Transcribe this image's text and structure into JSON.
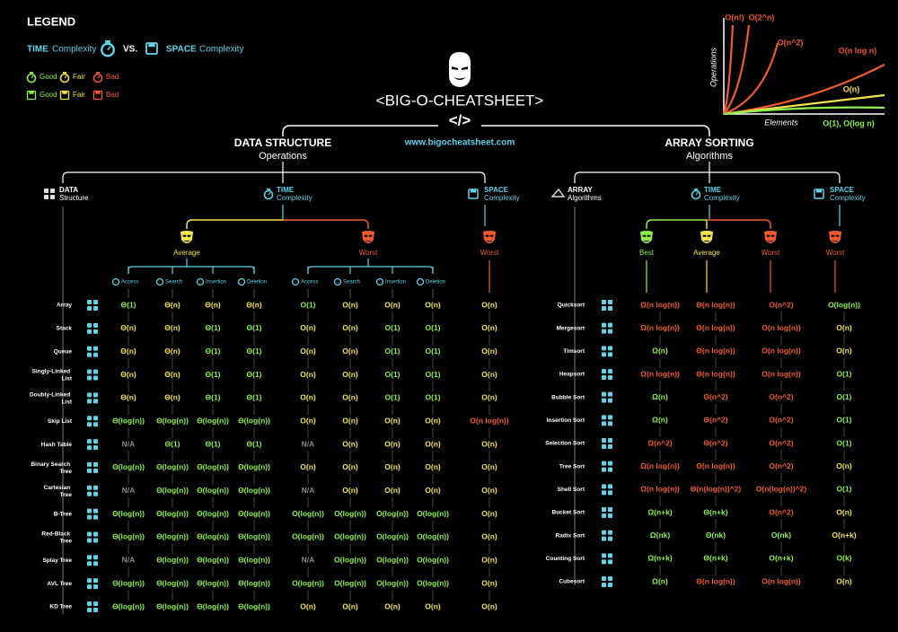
{
  "legend": {
    "title": "LEGEND",
    "time": "TIME",
    "time_sub": "Complexity",
    "vs": "VS.",
    "space": "SPACE",
    "space_sub": "Complexity",
    "time_ratings": [
      "Good",
      "Fair",
      "Bad"
    ],
    "space_ratings": [
      "Good",
      "Fair",
      "Bad"
    ],
    "rating_keys": [
      "good",
      "fair",
      "bad"
    ]
  },
  "colors": {
    "good": "#8ef04a",
    "fair": "#f2e44c",
    "bad": "#ef5a2f",
    "na": "#8a8a8a",
    "accent": "#5fd3e8"
  },
  "header": {
    "title": "<BIG-O-CHEATSHEET>",
    "code": "</>",
    "url": "www.bigocheatsheet.com"
  },
  "growth_chart": {
    "y_label": "Operations",
    "x_label": "Elements",
    "curves": [
      {
        "label": "O(n!)",
        "color": "#ef5a2f"
      },
      {
        "label": "O(2^n)",
        "color": "#ef5a2f"
      },
      {
        "label": "O(n^2)",
        "color": "#ef5a2f"
      },
      {
        "label": "O(n log n)",
        "color": "#ef5a2f"
      },
      {
        "label": "O(n)",
        "color": "#f2e44c"
      },
      {
        "label": "O(1), O(log n)",
        "color": "#8ef04a"
      }
    ]
  },
  "data_structures": {
    "title": "DATA STRUCTURE",
    "subtitle": "Operations",
    "structure_head": {
      "title": "DATA",
      "sub": "Structure"
    },
    "time_head": {
      "title": "TIME",
      "sub": "Complexity"
    },
    "space_head": {
      "title": "SPACE",
      "sub": "Complexity"
    },
    "groups": [
      "Average",
      "Worst"
    ],
    "group_ratings": [
      "fair",
      "bad"
    ],
    "space_group": "Worst",
    "space_group_rating": "bad",
    "operations": [
      "Access",
      "Search",
      "Insertion",
      "Deletion"
    ],
    "rows": [
      {
        "name": "Array",
        "cells": [
          "Θ(1)",
          "Θ(n)",
          "Θ(n)",
          "Θ(n)",
          "O(1)",
          "O(n)",
          "O(n)",
          "O(n)",
          "O(n)"
        ],
        "ratings": [
          "good",
          "fair",
          "fair",
          "fair",
          "good",
          "fair",
          "fair",
          "fair",
          "fair"
        ]
      },
      {
        "name": "Stack",
        "cells": [
          "Θ(n)",
          "Θ(n)",
          "Θ(1)",
          "Θ(1)",
          "O(n)",
          "O(n)",
          "O(1)",
          "O(1)",
          "O(n)"
        ],
        "ratings": [
          "fair",
          "fair",
          "good",
          "good",
          "fair",
          "fair",
          "good",
          "good",
          "fair"
        ]
      },
      {
        "name": "Queue",
        "cells": [
          "Θ(n)",
          "Θ(n)",
          "Θ(1)",
          "Θ(1)",
          "O(n)",
          "O(n)",
          "O(1)",
          "O(1)",
          "O(n)"
        ],
        "ratings": [
          "fair",
          "fair",
          "good",
          "good",
          "fair",
          "fair",
          "good",
          "good",
          "fair"
        ]
      },
      {
        "name": "Singly-Linked List",
        "cells": [
          "Θ(n)",
          "Θ(n)",
          "Θ(1)",
          "Θ(1)",
          "O(n)",
          "O(n)",
          "O(1)",
          "O(1)",
          "O(n)"
        ],
        "ratings": [
          "fair",
          "fair",
          "good",
          "good",
          "fair",
          "fair",
          "good",
          "good",
          "fair"
        ]
      },
      {
        "name": "Doubly-Linked List",
        "cells": [
          "Θ(n)",
          "Θ(n)",
          "Θ(1)",
          "Θ(1)",
          "O(n)",
          "O(n)",
          "O(1)",
          "O(1)",
          "O(n)"
        ],
        "ratings": [
          "fair",
          "fair",
          "good",
          "good",
          "fair",
          "fair",
          "good",
          "good",
          "fair"
        ]
      },
      {
        "name": "Skip List",
        "cells": [
          "Θ(log(n))",
          "Θ(log(n))",
          "Θ(log(n))",
          "Θ(log(n))",
          "O(n)",
          "O(n)",
          "O(n)",
          "O(n)",
          "O(n log(n))"
        ],
        "ratings": [
          "good",
          "good",
          "good",
          "good",
          "fair",
          "fair",
          "fair",
          "fair",
          "bad"
        ]
      },
      {
        "name": "Hash Table",
        "cells": [
          "N/A",
          "Θ(1)",
          "Θ(1)",
          "Θ(1)",
          "N/A",
          "O(n)",
          "O(n)",
          "O(n)",
          "O(n)"
        ],
        "ratings": [
          "na",
          "good",
          "good",
          "good",
          "na",
          "fair",
          "fair",
          "fair",
          "fair"
        ]
      },
      {
        "name": "Binary Search Tree",
        "cells": [
          "Θ(log(n))",
          "Θ(log(n))",
          "Θ(log(n))",
          "Θ(log(n))",
          "O(n)",
          "O(n)",
          "O(n)",
          "O(n)",
          "O(n)"
        ],
        "ratings": [
          "good",
          "good",
          "good",
          "good",
          "fair",
          "fair",
          "fair",
          "fair",
          "fair"
        ]
      },
      {
        "name": "Cartesian Tree",
        "cells": [
          "N/A",
          "Θ(log(n))",
          "Θ(log(n))",
          "Θ(log(n))",
          "N/A",
          "O(n)",
          "O(n)",
          "O(n)",
          "O(n)"
        ],
        "ratings": [
          "na",
          "good",
          "good",
          "good",
          "na",
          "fair",
          "fair",
          "fair",
          "fair"
        ]
      },
      {
        "name": "B-Tree",
        "cells": [
          "Θ(log(n))",
          "Θ(log(n))",
          "Θ(log(n))",
          "Θ(log(n))",
          "O(log(n))",
          "O(log(n))",
          "O(log(n))",
          "O(log(n))",
          "O(n)"
        ],
        "ratings": [
          "good",
          "good",
          "good",
          "good",
          "good",
          "good",
          "good",
          "good",
          "fair"
        ]
      },
      {
        "name": "Red-Black Tree",
        "cells": [
          "Θ(log(n))",
          "Θ(log(n))",
          "Θ(log(n))",
          "Θ(log(n))",
          "O(log(n))",
          "O(log(n))",
          "O(log(n))",
          "O(log(n))",
          "O(n)"
        ],
        "ratings": [
          "good",
          "good",
          "good",
          "good",
          "good",
          "good",
          "good",
          "good",
          "fair"
        ]
      },
      {
        "name": "Splay Tree",
        "cells": [
          "N/A",
          "Θ(log(n))",
          "Θ(log(n))",
          "Θ(log(n))",
          "N/A",
          "O(log(n))",
          "O(log(n))",
          "O(log(n))",
          "O(n)"
        ],
        "ratings": [
          "na",
          "good",
          "good",
          "good",
          "na",
          "good",
          "good",
          "good",
          "fair"
        ]
      },
      {
        "name": "AVL Tree",
        "cells": [
          "Θ(log(n))",
          "Θ(log(n))",
          "Θ(log(n))",
          "Θ(log(n))",
          "O(log(n))",
          "O(log(n))",
          "O(log(n))",
          "O(log(n))",
          "O(n)"
        ],
        "ratings": [
          "good",
          "good",
          "good",
          "good",
          "good",
          "good",
          "good",
          "good",
          "fair"
        ]
      },
      {
        "name": "KD Tree",
        "cells": [
          "Θ(log(n))",
          "Θ(log(n))",
          "Θ(log(n))",
          "Θ(log(n))",
          "O(n)",
          "O(n)",
          "O(n)",
          "O(n)",
          "O(n)"
        ],
        "ratings": [
          "good",
          "good",
          "good",
          "good",
          "fair",
          "fair",
          "fair",
          "fair",
          "fair"
        ]
      }
    ]
  },
  "array_sorting": {
    "title": "ARRAY SORTING",
    "subtitle": "Algorithms",
    "algo_head": {
      "title": "ARRAY",
      "sub": "Algorithms"
    },
    "time_head": {
      "title": "TIME",
      "sub": "Complexity"
    },
    "space_head": {
      "title": "SPACE",
      "sub": "Complexity"
    },
    "time_groups": [
      "Best",
      "Average",
      "Worst"
    ],
    "time_group_ratings": [
      "good",
      "fair",
      "bad"
    ],
    "space_group": "Worst",
    "space_group_rating": "bad",
    "rows": [
      {
        "name": "Quicksort",
        "cells": [
          "Ω(n log(n))",
          "Θ(n log(n))",
          "O(n^2)",
          "O(log(n))"
        ],
        "ratings": [
          "bad",
          "bad",
          "bad",
          "good"
        ]
      },
      {
        "name": "Mergesort",
        "cells": [
          "Ω(n log(n))",
          "Θ(n log(n))",
          "O(n log(n))",
          "O(n)"
        ],
        "ratings": [
          "bad",
          "bad",
          "bad",
          "fair"
        ]
      },
      {
        "name": "Timsort",
        "cells": [
          "Ω(n)",
          "Θ(n log(n))",
          "O(n log(n))",
          "O(n)"
        ],
        "ratings": [
          "good",
          "bad",
          "bad",
          "fair"
        ]
      },
      {
        "name": "Heapsort",
        "cells": [
          "Ω(n log(n))",
          "Θ(n log(n))",
          "O(n log(n))",
          "O(1)"
        ],
        "ratings": [
          "bad",
          "bad",
          "bad",
          "good"
        ]
      },
      {
        "name": "Bubble Sort",
        "cells": [
          "Ω(n)",
          "Θ(n^2)",
          "O(n^2)",
          "O(1)"
        ],
        "ratings": [
          "good",
          "bad",
          "bad",
          "good"
        ]
      },
      {
        "name": "Insertion Sort",
        "cells": [
          "Ω(n)",
          "Θ(n^2)",
          "O(n^2)",
          "O(1)"
        ],
        "ratings": [
          "good",
          "bad",
          "bad",
          "good"
        ]
      },
      {
        "name": "Selection Sort",
        "cells": [
          "Ω(n^2)",
          "Θ(n^2)",
          "O(n^2)",
          "O(1)"
        ],
        "ratings": [
          "bad",
          "bad",
          "bad",
          "good"
        ]
      },
      {
        "name": "Tree Sort",
        "cells": [
          "Ω(n log(n))",
          "Θ(n log(n))",
          "O(n^2)",
          "O(n)"
        ],
        "ratings": [
          "bad",
          "bad",
          "bad",
          "fair"
        ]
      },
      {
        "name": "Shell Sort",
        "cells": [
          "Ω(n log(n))",
          "Θ(n(log(n))^2)",
          "O(n(log(n))^2)",
          "O(1)"
        ],
        "ratings": [
          "bad",
          "bad",
          "bad",
          "good"
        ]
      },
      {
        "name": "Bucket Sort",
        "cells": [
          "Ω(n+k)",
          "Θ(n+k)",
          "O(n^2)",
          "O(n)"
        ],
        "ratings": [
          "good",
          "good",
          "bad",
          "fair"
        ]
      },
      {
        "name": "Radix Sort",
        "cells": [
          "Ω(nk)",
          "Θ(nk)",
          "O(nk)",
          "O(n+k)"
        ],
        "ratings": [
          "good",
          "good",
          "good",
          "fair"
        ]
      },
      {
        "name": "Counting Sort",
        "cells": [
          "Ω(n+k)",
          "Θ(n+k)",
          "O(n+k)",
          "O(k)"
        ],
        "ratings": [
          "good",
          "good",
          "good",
          "good"
        ]
      },
      {
        "name": "Cubesort",
        "cells": [
          "Ω(n)",
          "Θ(n log(n))",
          "O(n log(n))",
          "O(n)"
        ],
        "ratings": [
          "good",
          "bad",
          "bad",
          "fair"
        ]
      }
    ]
  }
}
